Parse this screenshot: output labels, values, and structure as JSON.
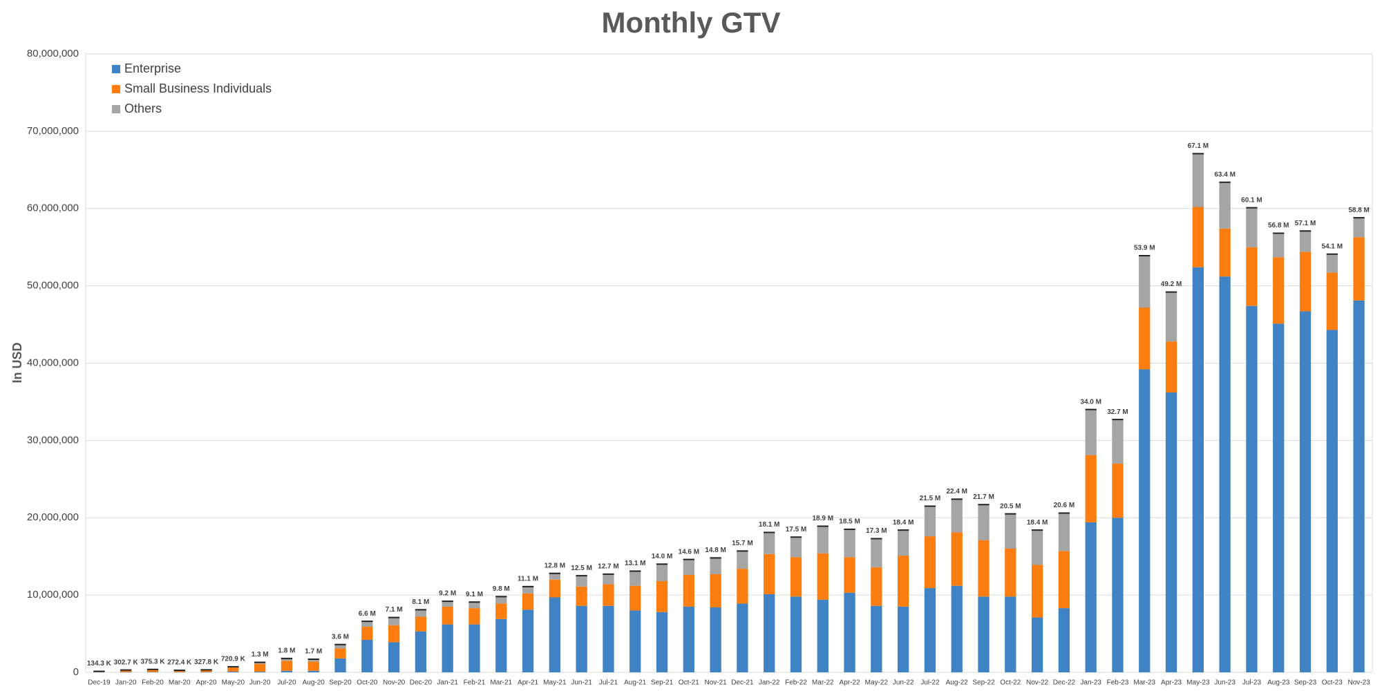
{
  "chart_data": {
    "type": "stacked-bar",
    "title": "Monthly GTV",
    "y_label": "In USD",
    "categories": [
      "Dec-19",
      "Jan-20",
      "Feb-20",
      "Mar-20",
      "Apr-20",
      "May-20",
      "Jun-20",
      "Jul-20",
      "Aug-20",
      "Sep-20",
      "Oct-20",
      "Nov-20",
      "Dec-20",
      "Jan-21",
      "Feb-21",
      "Mar-21",
      "Apr-21",
      "May-21",
      "Jun-21",
      "Jul-21",
      "Aug-21",
      "Sep-21",
      "Oct-21",
      "Nov-21",
      "Dec-21",
      "Jan-22",
      "Feb-22",
      "Mar-22",
      "Apr-22",
      "May-22",
      "Jun-22",
      "Jul-22",
      "Aug-22",
      "Sep-22",
      "Oct-22",
      "Nov-22",
      "Dec-22",
      "Jan-23",
      "Feb-23",
      "Mar-23",
      "Apr-23",
      "May-23",
      "Jun-23",
      "Jul-23",
      "Aug-23",
      "Sep-23",
      "Oct-23",
      "Nov-23"
    ],
    "series": [
      {
        "name": "Enterprise",
        "color": "#3f83c4",
        "values": [
          30000,
          50000,
          50000,
          40000,
          50000,
          100000,
          100000,
          200000,
          200000,
          1800000,
          4200000,
          3900000,
          5300000,
          6200000,
          6200000,
          6900000,
          8100000,
          9700000,
          8600000,
          8600000,
          8000000,
          7800000,
          8500000,
          8400000,
          8900000,
          10100000,
          9800000,
          9400000,
          10300000,
          8600000,
          8500000,
          10900000,
          11200000,
          9800000,
          9800000,
          7100000,
          8300000,
          19400000,
          20000000,
          39200000,
          36200000,
          52400000,
          51200000,
          47400000,
          45100000,
          46700000,
          44300000,
          48100000
        ]
      },
      {
        "name": "Small Business Individuals",
        "color": "#fb7d10",
        "values": [
          90000,
          220000,
          280000,
          200000,
          240000,
          550000,
          1000000,
          1300000,
          1200000,
          1300000,
          1700000,
          2200000,
          1900000,
          2300000,
          2100000,
          2000000,
          2100000,
          2300000,
          2500000,
          2800000,
          3200000,
          4000000,
          4100000,
          4300000,
          4500000,
          5200000,
          5100000,
          6000000,
          4600000,
          5000000,
          6600000,
          6700000,
          6900000,
          7300000,
          6200000,
          6800000,
          7400000,
          8700000,
          7000000,
          8000000,
          6600000,
          7800000,
          6200000,
          7600000,
          8600000,
          7700000,
          7400000,
          8200000
        ]
      },
      {
        "name": "Others",
        "color": "#a5a5a5",
        "values": [
          14300,
          32700,
          45300,
          32400,
          37800,
          70900,
          200000,
          300000,
          300000,
          500000,
          700000,
          1000000,
          900000,
          700000,
          800000,
          900000,
          900000,
          800000,
          1400000,
          1300000,
          1900000,
          2200000,
          2000000,
          2100000,
          2300000,
          2800000,
          2600000,
          3500000,
          3600000,
          3700000,
          3300000,
          3900000,
          4300000,
          4600000,
          4500000,
          4500000,
          4900000,
          5900000,
          5700000,
          6700000,
          6400000,
          6900000,
          6000000,
          5100000,
          3100000,
          2700000,
          2400000,
          2500000
        ]
      }
    ],
    "totals": {
      "color": "#222222",
      "values": [
        134300,
        302700,
        375300,
        272400,
        327800,
        720900,
        1300000,
        1800000,
        1700000,
        3600000,
        6600000,
        7100000,
        8100000,
        9200000,
        9100000,
        9800000,
        11100000,
        12800000,
        12500000,
        12700000,
        13100000,
        14000000,
        14600000,
        14800000,
        15700000,
        18100000,
        17500000,
        18900000,
        18500000,
        17300000,
        18400000,
        21500000,
        22400000,
        21700000,
        20500000,
        18400000,
        20600000,
        34000000,
        32700000,
        53900000,
        49200000,
        67100000,
        63400000,
        60100000,
        56800000,
        57100000,
        54100000,
        58800000
      ],
      "value_labels": [
        "134.3 K",
        "302.7 K",
        "375.3 K",
        "272.4 K",
        "327.8 K",
        "720.9 K",
        "1.3 M",
        "1.8 M",
        "1.7 M",
        "3.6 M",
        "6.6 M",
        "7.1 M",
        "8.1 M",
        "9.2 M",
        "9.1 M",
        "9.8 M",
        "11.1 M",
        "12.8 M",
        "12.5 M",
        "12.7 M",
        "13.1 M",
        "14.0 M",
        "14.6 M",
        "14.8 M",
        "15.7 M",
        "18.1 M",
        "17.5 M",
        "18.9 M",
        "18.5 M",
        "17.3 M",
        "18.4 M",
        "21.5 M",
        "22.4 M",
        "21.7 M",
        "20.5 M",
        "18.4 M",
        "20.6 M",
        "34.0 M",
        "32.7 M",
        "53.9 M",
        "49.2 M",
        "67.1 M",
        "63.4 M",
        "60.1 M",
        "56.8 M",
        "57.1 M",
        "54.1 M",
        "58.8 M"
      ]
    },
    "ylim": [
      0,
      80000000
    ],
    "yticks": [
      {
        "value": 0,
        "label": "0"
      },
      {
        "value": 10000000,
        "label": "10,000,000"
      },
      {
        "value": 20000000,
        "label": "20,000,000"
      },
      {
        "value": 30000000,
        "label": "30,000,000"
      },
      {
        "value": 40000000,
        "label": "40,000,000"
      },
      {
        "value": 50000000,
        "label": "50,000,000"
      },
      {
        "value": 60000000,
        "label": "60,000,000"
      },
      {
        "value": 70000000,
        "label": "70,000,000"
      },
      {
        "value": 80000000,
        "label": "80,000,000"
      }
    ],
    "grid": true,
    "legend": "top-left"
  }
}
